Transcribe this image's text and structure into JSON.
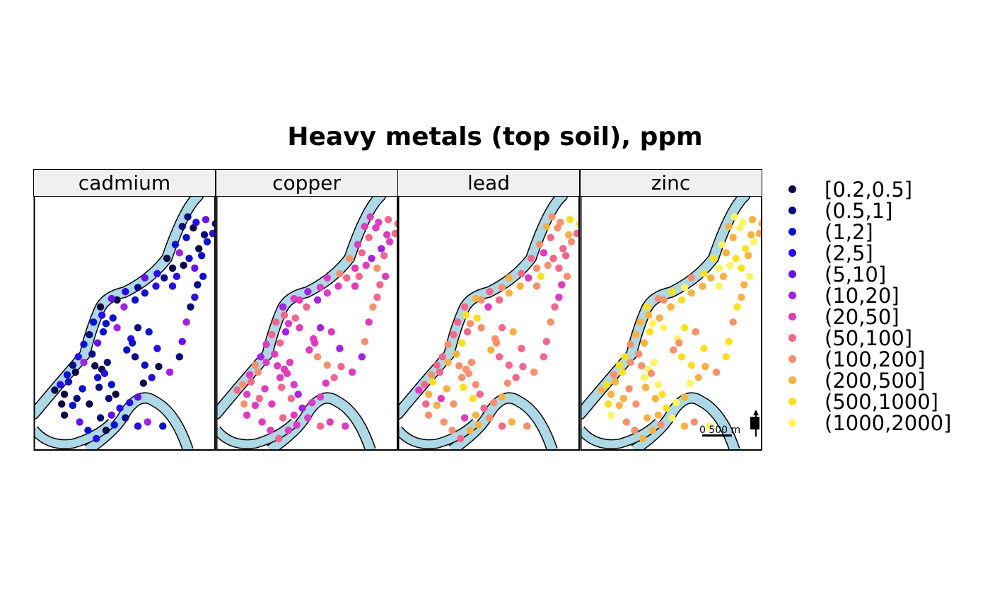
{
  "title": "Heavy metals (top soil), ppm",
  "panels": [
    {
      "name": "cadmium"
    },
    {
      "name": "copper"
    },
    {
      "name": "lead"
    },
    {
      "name": "zinc"
    }
  ],
  "legend": {
    "classes": [
      {
        "label": "[0.2,0.5]",
        "color": "#0d0846"
      },
      {
        "label": "(0.5,1]",
        "color": "#070b88"
      },
      {
        "label": "(1,2]",
        "color": "#0b10d8"
      },
      {
        "label": "(2,5]",
        "color": "#2a0bf0"
      },
      {
        "label": "(5,10]",
        "color": "#6a0ff0"
      },
      {
        "label": "(10,20]",
        "color": "#a51fe6"
      },
      {
        "label": "(20,50]",
        "color": "#e339c2"
      },
      {
        "label": "(50,100]",
        "color": "#f8648a"
      },
      {
        "label": "(100,200]",
        "color": "#fa8f6a"
      },
      {
        "label": "(200,500]",
        "color": "#fbb13c"
      },
      {
        "label": "(500,1000]",
        "color": "#fde018"
      },
      {
        "label": "(1000,2000]",
        "color": "#fdf55a"
      }
    ]
  },
  "map_style": {
    "river_color": "#add8e6",
    "outline_color": "#000000"
  },
  "scale_bar": {
    "label": "0  500 m",
    "panel": "zinc"
  },
  "north_arrow": {
    "panel": "zinc",
    "icon": "north-arrow-icon"
  }
}
